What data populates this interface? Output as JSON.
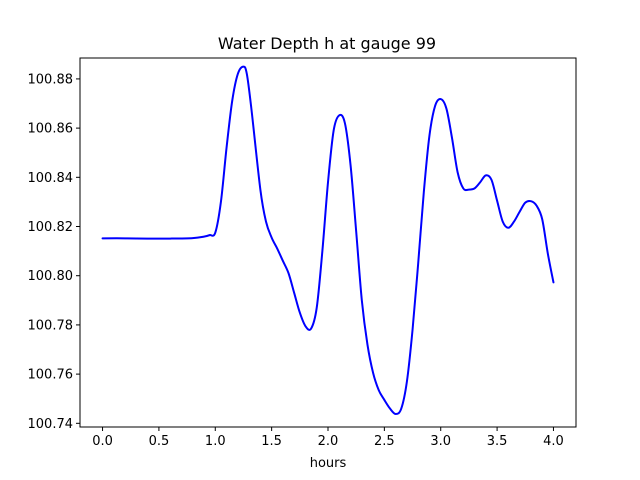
{
  "chart_data": {
    "type": "line",
    "title": "Water Depth h at gauge 99",
    "xlabel": "hours",
    "ylabel": "",
    "xlim": [
      -0.2,
      4.2
    ],
    "ylim": [
      100.7385,
      100.8885
    ],
    "xticks": [
      0.0,
      0.5,
      1.0,
      1.5,
      2.0,
      2.5,
      3.0,
      3.5,
      4.0
    ],
    "xtick_labels": [
      "0.0",
      "0.5",
      "1.0",
      "1.5",
      "2.0",
      "2.5",
      "3.0",
      "3.5",
      "4.0"
    ],
    "yticks": [
      100.74,
      100.76,
      100.78,
      100.8,
      100.82,
      100.84,
      100.86,
      100.88
    ],
    "ytick_labels": [
      "100.74",
      "100.76",
      "100.78",
      "100.80",
      "100.82",
      "100.84",
      "100.86",
      "100.88"
    ],
    "grid": false,
    "series": [
      {
        "color": "#0000ff",
        "x": [
          0.0,
          0.2,
          0.4,
          0.6,
          0.8,
          0.9,
          0.95,
          1.0,
          1.05,
          1.1,
          1.15,
          1.2,
          1.25,
          1.28,
          1.32,
          1.4,
          1.45,
          1.5,
          1.55,
          1.6,
          1.65,
          1.7,
          1.75,
          1.8,
          1.85,
          1.9,
          1.95,
          2.0,
          2.05,
          2.1,
          2.15,
          2.2,
          2.25,
          2.3,
          2.35,
          2.4,
          2.45,
          2.5,
          2.55,
          2.6,
          2.65,
          2.7,
          2.75,
          2.8,
          2.85,
          2.9,
          2.95,
          3.0,
          3.05,
          3.1,
          3.15,
          3.2,
          3.25,
          3.3,
          3.35,
          3.4,
          3.45,
          3.5,
          3.55,
          3.6,
          3.65,
          3.7,
          3.75,
          3.8,
          3.85,
          3.9,
          3.95,
          4.0
        ],
        "y": [
          100.8152,
          100.8152,
          100.8151,
          100.8151,
          100.8153,
          100.8159,
          100.8165,
          100.8175,
          100.83,
          100.852,
          100.871,
          100.882,
          100.885,
          100.882,
          100.868,
          100.835,
          100.822,
          100.8155,
          100.811,
          100.806,
          100.801,
          100.793,
          100.785,
          100.7795,
          100.7785,
          100.787,
          100.81,
          100.838,
          100.859,
          100.8652,
          100.862,
          100.845,
          100.818,
          100.79,
          100.772,
          100.7605,
          100.7535,
          100.7495,
          100.746,
          100.7438,
          100.746,
          100.757,
          100.778,
          100.805,
          100.834,
          100.857,
          100.869,
          100.8718,
          100.868,
          100.856,
          100.842,
          100.8355,
          100.835,
          100.8355,
          100.838,
          100.8408,
          100.839,
          100.8305,
          100.822,
          100.8195,
          100.822,
          100.826,
          100.8297,
          100.8303,
          100.8285,
          100.823,
          100.809,
          100.7973
        ]
      }
    ]
  }
}
